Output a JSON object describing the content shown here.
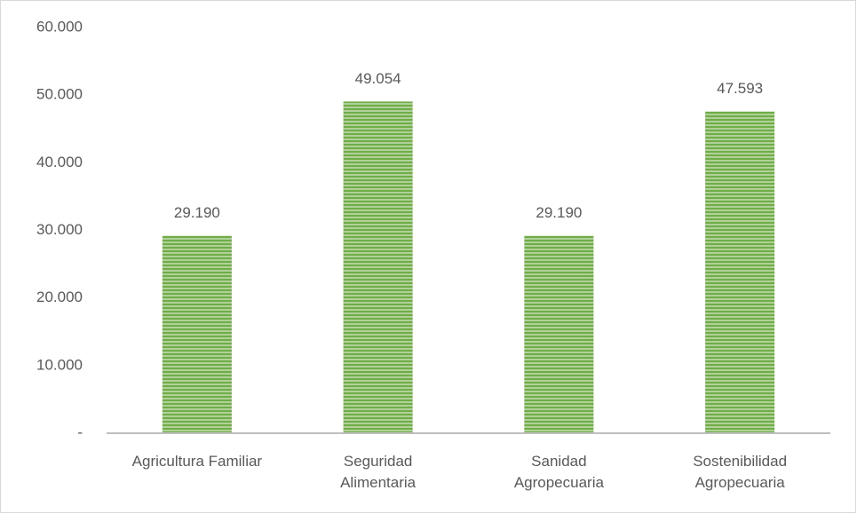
{
  "chart_data": {
    "type": "bar",
    "categories": [
      "Agricultura Familiar",
      "Seguridad\nAlimentaria",
      "Sanidad\nAgropecuaria",
      "Sostenibilidad\nAgropecuaria"
    ],
    "values": [
      29190,
      49054,
      29190,
      47593
    ],
    "value_labels": [
      "29.190",
      "49.054",
      "29.190",
      "47.593"
    ],
    "color": "#70ad47",
    "ylim": [
      0,
      60000
    ],
    "yticks": [
      {
        "value": 0,
        "label": "-"
      },
      {
        "value": 10000,
        "label": "10.000"
      },
      {
        "value": 20000,
        "label": "20.000"
      },
      {
        "value": 30000,
        "label": "30.000"
      },
      {
        "value": 40000,
        "label": "40.000"
      },
      {
        "value": 50000,
        "label": "50.000"
      },
      {
        "value": 60000,
        "label": "60.000"
      }
    ],
    "grid": false
  }
}
